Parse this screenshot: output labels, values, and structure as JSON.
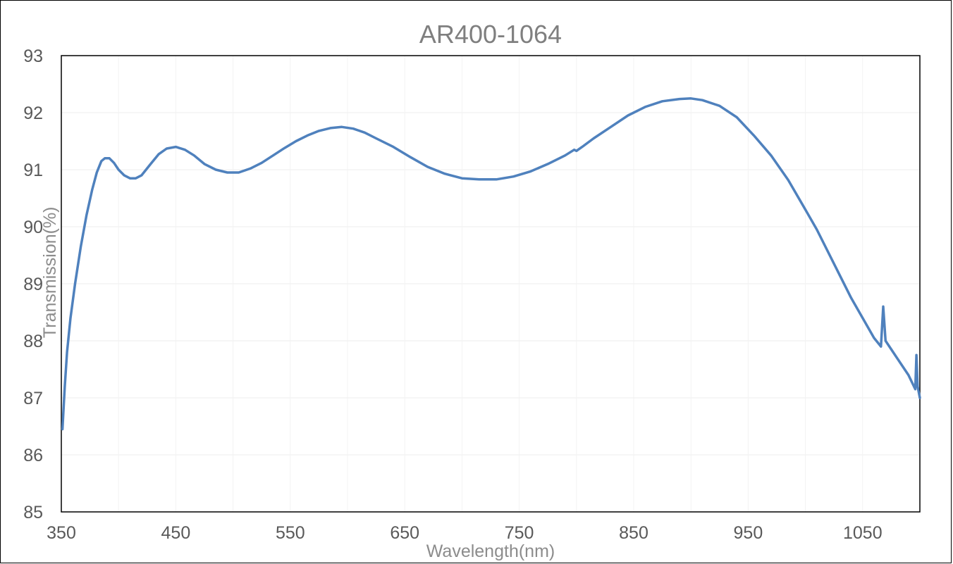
{
  "chart_data": {
    "type": "line",
    "title": "AR400-1064",
    "xlabel": "Wavelength(nm)",
    "ylabel": "Transmission(%)",
    "xlim": [
      350,
      1100
    ],
    "ylim": [
      85,
      93
    ],
    "x_ticks": [
      350,
      450,
      550,
      650,
      750,
      850,
      950,
      1050
    ],
    "y_ticks": [
      85,
      86,
      87,
      88,
      89,
      90,
      91,
      92,
      93
    ],
    "grid": true,
    "legend": "none",
    "line_color": "#4f81bd",
    "series": [
      {
        "x": [
          351,
          353,
          355,
          358,
          362,
          367,
          372,
          377,
          381,
          385,
          388,
          392,
          396,
          400,
          405,
          410,
          415,
          420,
          428,
          435,
          442,
          450,
          458,
          466,
          475,
          485,
          495,
          505,
          515,
          525,
          535,
          545,
          555,
          565,
          575,
          585,
          595,
          605,
          615,
          625,
          640,
          655,
          670,
          685,
          700,
          715,
          730,
          745,
          760,
          775,
          790,
          798,
          800,
          805,
          815,
          830,
          845,
          860,
          875,
          890,
          900,
          910,
          925,
          940,
          955,
          970,
          985,
          1000,
          1010,
          1020,
          1030,
          1040,
          1050,
          1060,
          1066,
          1068,
          1070,
          1080,
          1090,
          1096,
          1097,
          1098,
          1100
        ],
        "y": [
          86.45,
          87.2,
          87.8,
          88.4,
          89.0,
          89.65,
          90.2,
          90.65,
          90.95,
          91.15,
          91.2,
          91.2,
          91.12,
          91.0,
          90.9,
          90.85,
          90.85,
          90.9,
          91.1,
          91.27,
          91.37,
          91.4,
          91.35,
          91.25,
          91.1,
          91.0,
          90.95,
          90.95,
          91.02,
          91.12,
          91.25,
          91.38,
          91.5,
          91.6,
          91.68,
          91.73,
          91.75,
          91.72,
          91.65,
          91.55,
          91.4,
          91.22,
          91.05,
          90.93,
          90.85,
          90.83,
          90.83,
          90.88,
          90.97,
          91.1,
          91.25,
          91.35,
          91.33,
          91.4,
          91.55,
          91.75,
          91.95,
          92.1,
          92.2,
          92.24,
          92.25,
          92.22,
          92.12,
          91.92,
          91.6,
          91.25,
          90.82,
          90.3,
          89.95,
          89.55,
          89.15,
          88.75,
          88.4,
          88.05,
          87.9,
          88.6,
          88.0,
          87.7,
          87.4,
          87.15,
          87.75,
          87.2,
          87.0
        ]
      }
    ]
  }
}
